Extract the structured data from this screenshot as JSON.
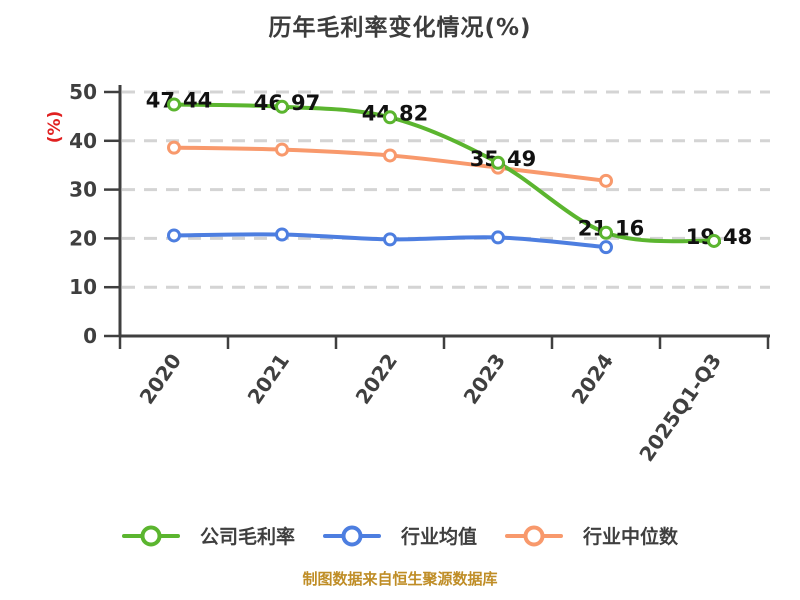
{
  "chart_data": {
    "type": "line",
    "title": "历年毛利率变化情况(%)",
    "y_axis_label": "(%)",
    "categories": [
      "2020",
      "2021",
      "2022",
      "2023",
      "2024",
      "2025Q1-Q3"
    ],
    "series": [
      {
        "key": "company-gross-margin",
        "name": "公司毛利率",
        "color": "#5bb52f",
        "values": [
          47.44,
          46.97,
          44.82,
          35.49,
          21.16,
          19.48
        ],
        "show_labels": true
      },
      {
        "key": "industry-average",
        "name": "行业均值",
        "color": "#4d7ee0",
        "values": [
          20.6,
          20.8,
          19.8,
          20.2,
          18.2
        ],
        "show_labels": false
      },
      {
        "key": "industry-median",
        "name": "行业中位数",
        "color": "#f8996c",
        "values": [
          38.6,
          38.2,
          37.0,
          34.5,
          31.8
        ],
        "show_labels": false
      }
    ],
    "ylim": [
      0,
      50
    ],
    "yticks": [
      0,
      10,
      20,
      30,
      40,
      50
    ],
    "grid": "horizontal-dashed",
    "smooth": true,
    "legend_position": "bottom"
  },
  "footer": {
    "text": "制图数据来自恒生聚源数据库"
  },
  "colors": {
    "background": "#ffffff",
    "title": "#3c3c3c",
    "axis": "#3f3f3f",
    "tick_label": "#3f3f3f",
    "grid": "#d4d4d4",
    "y_axis_label": "#e02020",
    "data_label": "#111111",
    "footer": "#bf8d26",
    "marker_fill": "#ffffff"
  }
}
